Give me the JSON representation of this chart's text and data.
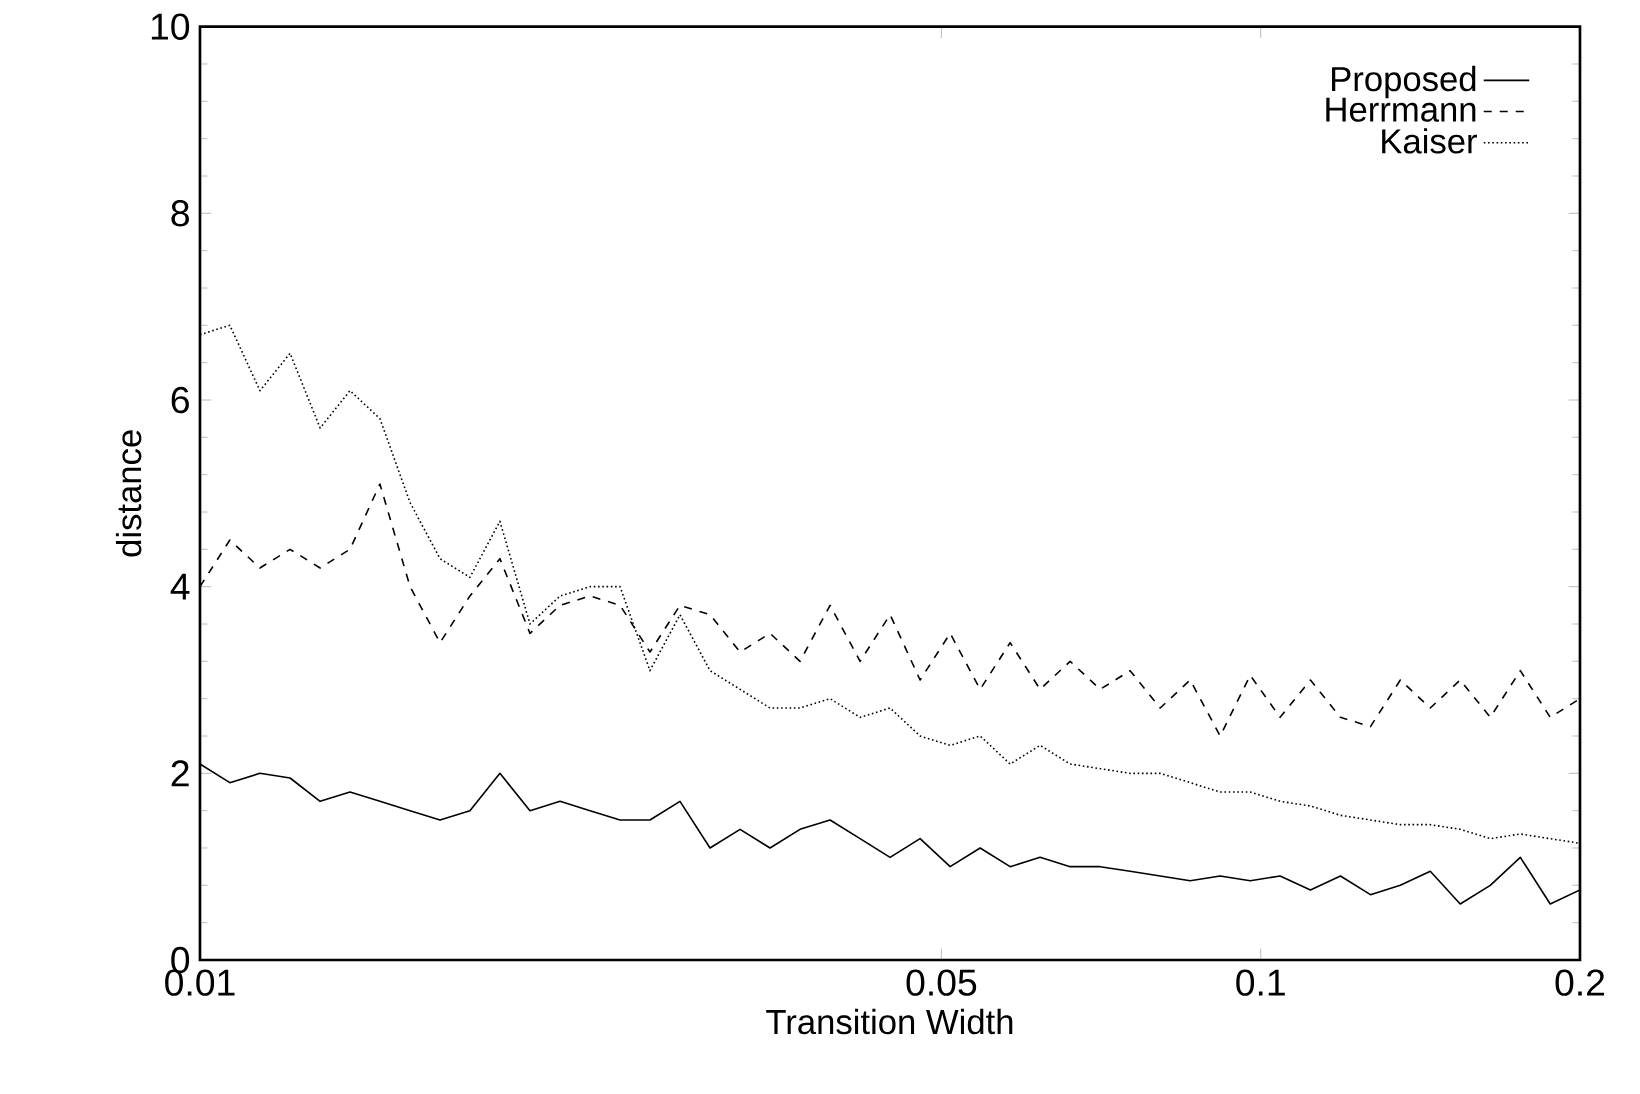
{
  "chart_data": {
    "type": "line",
    "xlabel": "Transition Width",
    "ylabel": "distance",
    "log": "x",
    "xlim": [
      0.01,
      0.2
    ],
    "ylim": [
      0,
      10
    ],
    "xticks": [
      0.01,
      0.05,
      0.1,
      0.2
    ],
    "yticks": [
      0,
      2,
      4,
      6,
      8,
      10
    ],
    "grid": false,
    "legend": "top right",
    "marker": "none",
    "x": [
      0.01,
      0.01067,
      0.01139,
      0.01216,
      0.01298,
      0.01385,
      0.01478,
      0.01578,
      0.01684,
      0.01797,
      0.01918,
      0.02047,
      0.02185,
      0.02332,
      0.02489,
      0.02656,
      0.02835,
      0.03026,
      0.0323,
      0.03447,
      0.03679,
      0.03927,
      0.04191,
      0.04473,
      0.04774,
      0.05096,
      0.05439,
      0.05805,
      0.06195,
      0.06612,
      0.07058,
      0.07533,
      0.0804,
      0.08581,
      0.09158,
      0.09775,
      0.1043,
      0.1114,
      0.1189,
      0.1269,
      0.1354,
      0.1445,
      0.1542,
      0.1646,
      0.1757,
      0.1875,
      0.2
    ],
    "series": [
      {
        "name": "Proposed",
        "color": "#000000",
        "line_style": "solid",
        "values": [
          2.1,
          1.9,
          2.0,
          1.95,
          1.7,
          1.8,
          1.7,
          1.6,
          1.5,
          1.6,
          2.0,
          1.6,
          1.7,
          1.6,
          1.5,
          1.5,
          1.7,
          1.2,
          1.4,
          1.2,
          1.4,
          1.5,
          1.3,
          1.1,
          1.3,
          1.0,
          1.2,
          1.0,
          1.1,
          1.0,
          1.0,
          0.95,
          0.9,
          0.85,
          0.9,
          0.85,
          0.9,
          0.75,
          0.9,
          0.7,
          0.8,
          0.95,
          0.6,
          0.8,
          1.1,
          0.6,
          0.75
        ]
      },
      {
        "name": "Herrmann",
        "color": "#000000",
        "line_style": "dashed",
        "values": [
          4.0,
          4.5,
          4.2,
          4.4,
          4.2,
          4.4,
          5.1,
          4.0,
          3.4,
          3.9,
          4.3,
          3.5,
          3.8,
          3.9,
          3.8,
          3.3,
          3.8,
          3.7,
          3.3,
          3.5,
          3.2,
          3.8,
          3.2,
          3.7,
          3.0,
          3.5,
          2.9,
          3.4,
          2.9,
          3.2,
          2.9,
          3.1,
          2.7,
          3.0,
          2.4,
          3.05,
          2.6,
          3.0,
          2.6,
          2.5,
          3.0,
          2.7,
          3.0,
          2.6,
          3.1,
          2.6,
          2.8
        ]
      },
      {
        "name": "Kaiser",
        "color": "#000000",
        "line_style": "dotted",
        "values": [
          6.7,
          6.8,
          6.1,
          6.5,
          5.7,
          6.1,
          5.8,
          4.9,
          4.3,
          4.1,
          4.7,
          3.6,
          3.9,
          4.0,
          4.0,
          3.1,
          3.7,
          3.1,
          2.9,
          2.7,
          2.7,
          2.8,
          2.6,
          2.7,
          2.4,
          2.3,
          2.4,
          2.1,
          2.3,
          2.1,
          2.05,
          2.0,
          2.0,
          1.9,
          1.8,
          1.8,
          1.7,
          1.65,
          1.55,
          1.5,
          1.45,
          1.45,
          1.4,
          1.3,
          1.35,
          1.3,
          1.25
        ]
      }
    ]
  }
}
